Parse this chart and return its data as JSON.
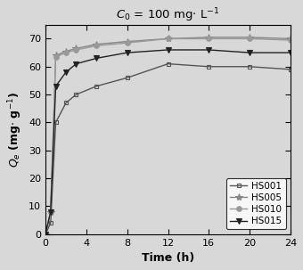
{
  "title": "$C_0$ = 100 mg$\\cdot$ L$^{-1}$",
  "xlabel": "Time (h)",
  "ylabel": "$Q_e$ (mg$\\cdot$ g$^{-1}$)",
  "xlim": [
    0,
    24
  ],
  "ylim": [
    0,
    75
  ],
  "xticks": [
    0,
    4,
    8,
    12,
    16,
    20,
    24
  ],
  "yticks": [
    0,
    10,
    20,
    30,
    40,
    50,
    60,
    70
  ],
  "series": [
    {
      "label": "HS001",
      "color": "#555555",
      "marker": "s",
      "markersize": 3.5,
      "x": [
        0,
        0.5,
        1,
        2,
        3,
        5,
        8,
        12,
        16,
        20,
        24
      ],
      "y": [
        0,
        4,
        40,
        47,
        50,
        53,
        56,
        61,
        60,
        60,
        59
      ]
    },
    {
      "label": "HS005",
      "color": "#888888",
      "marker": "*",
      "markersize": 6,
      "x": [
        0,
        0.5,
        1,
        2,
        3,
        5,
        8,
        12,
        16,
        20,
        24
      ],
      "y": [
        0,
        8,
        64,
        65.5,
        66.5,
        68,
        69,
        70,
        70.5,
        70.5,
        70
      ]
    },
    {
      "label": "HS010",
      "color": "#999999",
      "marker": "o",
      "markersize": 4,
      "x": [
        0,
        0.5,
        1,
        2,
        3,
        5,
        8,
        12,
        16,
        20,
        24
      ],
      "y": [
        0,
        8,
        63.5,
        65,
        66,
        67.5,
        68.5,
        70,
        70,
        70,
        69.5
      ]
    },
    {
      "label": "HS015",
      "color": "#222222",
      "marker": "v",
      "markersize": 5,
      "x": [
        0,
        0.5,
        1,
        2,
        3,
        5,
        8,
        12,
        16,
        20,
        24
      ],
      "y": [
        0,
        8,
        53,
        58,
        61,
        63,
        65,
        66,
        66,
        65,
        65
      ]
    }
  ],
  "background_color": "#d8d8d8",
  "plot_bg_color": "#d8d8d8",
  "legend_loc": "lower right",
  "legend_fontsize": 7.5,
  "title_fontsize": 9.5
}
